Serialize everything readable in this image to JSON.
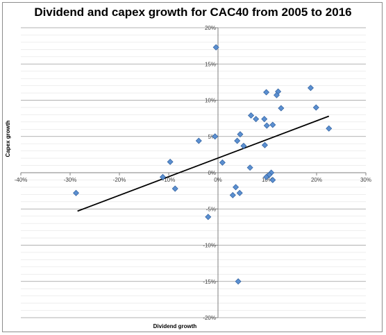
{
  "chart_data": {
    "type": "scatter",
    "title": "Dividend and capex growth for CAC40 from 2005 to 2016",
    "xlabel": "Dividend growth",
    "ylabel": "Capex growth",
    "xlim": [
      -0.4,
      0.3
    ],
    "ylim": [
      -0.2,
      0.2
    ],
    "x_ticks": [
      -0.4,
      -0.3,
      -0.2,
      -0.1,
      0.0,
      0.1,
      0.2,
      0.3
    ],
    "x_tick_labels": [
      "-40%",
      "-30%",
      "-20%",
      "-10%",
      "0%",
      "10%",
      "20%",
      "30%"
    ],
    "y_ticks": [
      0.2,
      0.15,
      0.1,
      0.05,
      0.0,
      -0.05,
      -0.1,
      -0.15,
      -0.2
    ],
    "y_tick_labels": [
      "20%",
      "15%",
      "10%",
      "5%",
      "0%",
      "-5%",
      "-10%",
      "-15%",
      "-20%"
    ],
    "minor_y_step": 0.01,
    "grid": "horizontal",
    "marker": "diamond",
    "marker_color": "#5b8fd0",
    "marker_edge": "#2e5f9e",
    "trendline": {
      "x": [
        -0.285,
        0.225
      ],
      "y": [
        -0.053,
        0.078
      ],
      "color": "#000000"
    },
    "points": [
      {
        "x": -0.004,
        "y": 0.173
      },
      {
        "x": 0.188,
        "y": 0.117
      },
      {
        "x": 0.098,
        "y": 0.111
      },
      {
        "x": 0.122,
        "y": 0.112
      },
      {
        "x": 0.119,
        "y": 0.107
      },
      {
        "x": 0.199,
        "y": 0.09
      },
      {
        "x": 0.128,
        "y": 0.089
      },
      {
        "x": 0.067,
        "y": 0.079
      },
      {
        "x": 0.077,
        "y": 0.074
      },
      {
        "x": 0.094,
        "y": 0.074
      },
      {
        "x": 0.111,
        "y": 0.066
      },
      {
        "x": 0.099,
        "y": 0.065
      },
      {
        "x": 0.225,
        "y": 0.061
      },
      {
        "x": 0.045,
        "y": 0.053
      },
      {
        "x": -0.006,
        "y": 0.05
      },
      {
        "x": 0.039,
        "y": 0.044
      },
      {
        "x": -0.039,
        "y": 0.044
      },
      {
        "x": 0.095,
        "y": 0.038
      },
      {
        "x": 0.052,
        "y": 0.037
      },
      {
        "x": -0.097,
        "y": 0.015
      },
      {
        "x": 0.009,
        "y": 0.014
      },
      {
        "x": 0.065,
        "y": 0.007
      },
      {
        "x": 0.108,
        "y": 0.0
      },
      {
        "x": 0.104,
        "y": -0.003
      },
      {
        "x": -0.112,
        "y": -0.006
      },
      {
        "x": 0.098,
        "y": -0.006
      },
      {
        "x": 0.111,
        "y": -0.01
      },
      {
        "x": 0.036,
        "y": -0.02
      },
      {
        "x": -0.087,
        "y": -0.022
      },
      {
        "x": -0.288,
        "y": -0.028
      },
      {
        "x": 0.044,
        "y": -0.028
      },
      {
        "x": 0.03,
        "y": -0.031
      },
      {
        "x": -0.02,
        "y": -0.061
      },
      {
        "x": 0.041,
        "y": -0.15
      }
    ]
  }
}
